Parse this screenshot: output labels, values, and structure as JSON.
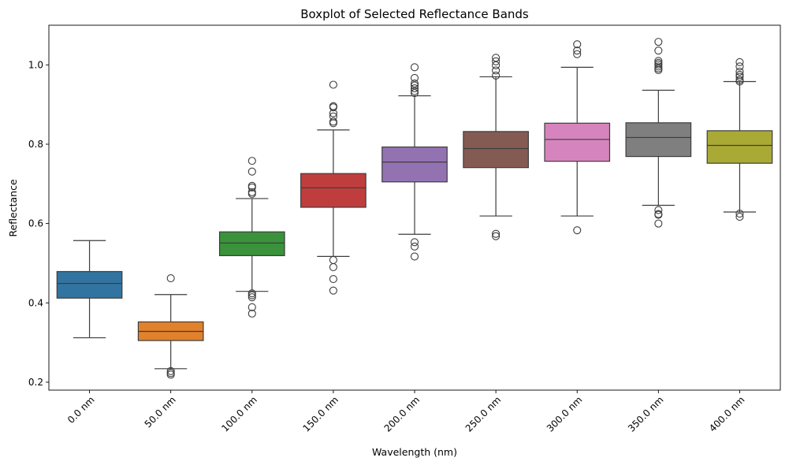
{
  "chart_data": {
    "type": "boxplot",
    "title": "Boxplot of Selected Reflectance Bands",
    "xlabel": "Wavelength (nm)",
    "ylabel": "Reflectance",
    "ylim": [
      0.18,
      1.1
    ],
    "yticks": [
      "0.2",
      "0.4",
      "0.6",
      "0.8",
      "1.0"
    ],
    "ytick_values": [
      0.2,
      0.4,
      0.6,
      0.8,
      1.0
    ],
    "grid": false,
    "categories": [
      "0.0 nm",
      "50.0 nm",
      "100.0 nm",
      "150.0 nm",
      "200.0 nm",
      "250.0 nm",
      "300.0 nm",
      "350.0 nm",
      "400.0 nm"
    ],
    "colors": [
      "#3274a1",
      "#e1812c",
      "#3a923a",
      "#c03d3e",
      "#9372b2",
      "#845b53",
      "#d684bd",
      "#7f7f7f",
      "#a9aa35"
    ],
    "boxes": [
      {
        "whisker_low": 0.312,
        "q1": 0.412,
        "median": 0.449,
        "q3": 0.479,
        "whisker_high": 0.557,
        "outliers": []
      },
      {
        "whisker_low": 0.234,
        "q1": 0.305,
        "median": 0.328,
        "q3": 0.352,
        "whisker_high": 0.421,
        "outliers": [
          0.462,
          0.228,
          0.223,
          0.219
        ]
      },
      {
        "whisker_low": 0.429,
        "q1": 0.519,
        "median": 0.551,
        "q3": 0.579,
        "whisker_high": 0.663,
        "outliers": [
          0.758,
          0.731,
          0.695,
          0.691,
          0.679,
          0.675,
          0.424,
          0.419,
          0.414,
          0.389,
          0.373
        ]
      },
      {
        "whisker_low": 0.517,
        "q1": 0.641,
        "median": 0.69,
        "q3": 0.726,
        "whisker_high": 0.836,
        "outliers": [
          0.95,
          0.896,
          0.893,
          0.878,
          0.87,
          0.857,
          0.853,
          0.508,
          0.49,
          0.46,
          0.431
        ]
      },
      {
        "whisker_low": 0.573,
        "q1": 0.705,
        "median": 0.755,
        "q3": 0.793,
        "whisker_high": 0.922,
        "outliers": [
          0.994,
          0.967,
          0.953,
          0.948,
          0.941,
          0.934,
          0.929,
          0.553,
          0.542,
          0.517
        ]
      },
      {
        "whisker_low": 0.619,
        "q1": 0.741,
        "median": 0.789,
        "q3": 0.832,
        "whisker_high": 0.97,
        "outliers": [
          1.018,
          1.009,
          0.999,
          0.986,
          0.973,
          0.574,
          0.568
        ]
      },
      {
        "whisker_low": 0.619,
        "q1": 0.757,
        "median": 0.812,
        "q3": 0.853,
        "whisker_high": 0.994,
        "outliers": [
          1.052,
          1.036,
          1.027,
          0.583
        ]
      },
      {
        "whisker_low": 0.646,
        "q1": 0.769,
        "median": 0.817,
        "q3": 0.854,
        "whisker_high": 0.936,
        "outliers": [
          1.058,
          1.036,
          1.01,
          1.005,
          1.001,
          0.996,
          0.991,
          0.987,
          0.634,
          0.624,
          0.622,
          0.6
        ]
      },
      {
        "whisker_low": 0.629,
        "q1": 0.752,
        "median": 0.797,
        "q3": 0.834,
        "whisker_high": 0.958,
        "outliers": [
          1.007,
          0.996,
          0.983,
          0.975,
          0.97,
          0.962,
          0.958,
          0.625,
          0.617
        ]
      }
    ]
  }
}
